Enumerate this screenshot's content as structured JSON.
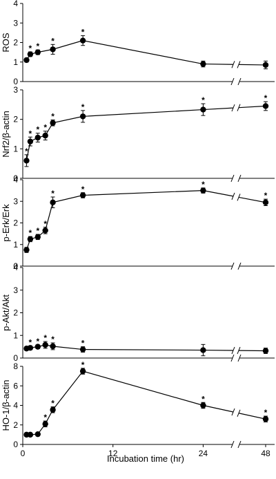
{
  "figure": {
    "xlabel": "Incubation time (hr)",
    "x_ticks": [
      "0",
      "12",
      "24",
      "48"
    ],
    "x_tick_values": [
      0,
      12,
      24,
      48
    ]
  },
  "chart_data": [
    {
      "type": "line",
      "ylabel": "ROS",
      "ylim": [
        0,
        4
      ],
      "y_ticks": [
        "0",
        "1",
        "2",
        "3",
        "4"
      ],
      "x": [
        0.5,
        1,
        2,
        4,
        8,
        24,
        48
      ],
      "values": [
        1.1,
        1.4,
        1.5,
        1.65,
        2.1,
        0.9,
        0.85
      ],
      "errors": [
        0.1,
        0.12,
        0.12,
        0.25,
        0.25,
        0.15,
        0.2
      ],
      "significant": [
        false,
        true,
        true,
        true,
        true,
        false,
        false
      ]
    },
    {
      "type": "line",
      "ylabel": "Nrf2/β-actin",
      "ylim": [
        0,
        3
      ],
      "y_ticks": [
        "0",
        "1",
        "2",
        "3"
      ],
      "x": [
        0.5,
        1,
        2,
        3,
        4,
        8,
        24,
        48
      ],
      "values": [
        0.6,
        1.25,
        1.38,
        1.45,
        1.88,
        2.1,
        2.33,
        2.45
      ],
      "errors": [
        0.2,
        0.15,
        0.15,
        0.15,
        0.1,
        0.2,
        0.2,
        0.15
      ],
      "significant": [
        true,
        true,
        true,
        true,
        true,
        true,
        true,
        true
      ]
    },
    {
      "type": "line",
      "ylabel": "p-Erk/Erk",
      "ylim": [
        0,
        4
      ],
      "y_ticks": [
        "0",
        "1",
        "2",
        "3",
        "4"
      ],
      "x": [
        0.5,
        1,
        2,
        3,
        4,
        8,
        24,
        48
      ],
      "values": [
        0.75,
        1.25,
        1.35,
        1.65,
        2.95,
        3.28,
        3.5,
        2.95
      ],
      "errors": [
        0.12,
        0.12,
        0.12,
        0.15,
        0.25,
        0.12,
        0.12,
        0.15
      ],
      "significant": [
        false,
        true,
        true,
        true,
        true,
        true,
        true,
        true
      ]
    },
    {
      "type": "line",
      "ylabel": "p-Akt/Akt",
      "ylim": [
        0,
        4
      ],
      "y_ticks": [
        "0",
        "1",
        "2",
        "3",
        "4"
      ],
      "x": [
        0.5,
        1,
        2,
        3,
        4,
        8,
        24,
        48
      ],
      "values": [
        0.42,
        0.45,
        0.5,
        0.58,
        0.52,
        0.38,
        0.35,
        0.32
      ],
      "errors": [
        0.08,
        0.08,
        0.08,
        0.15,
        0.15,
        0.12,
        0.25,
        0.12
      ],
      "significant": [
        false,
        true,
        true,
        true,
        true,
        true,
        false,
        false
      ]
    },
    {
      "type": "line",
      "ylabel": "HO-1/β-actin",
      "ylim": [
        0,
        8
      ],
      "y_ticks": [
        "0",
        "2",
        "4",
        "6",
        "8"
      ],
      "x": [
        0.5,
        1,
        2,
        3,
        4,
        8,
        24,
        48
      ],
      "values": [
        1,
        1,
        1.05,
        2.1,
        3.55,
        7.5,
        4.0,
        2.6
      ],
      "errors": [
        0.1,
        0.1,
        0.1,
        0.3,
        0.3,
        0.3,
        0.3,
        0.3
      ],
      "significant": [
        false,
        false,
        false,
        true,
        true,
        true,
        true,
        true
      ]
    }
  ]
}
